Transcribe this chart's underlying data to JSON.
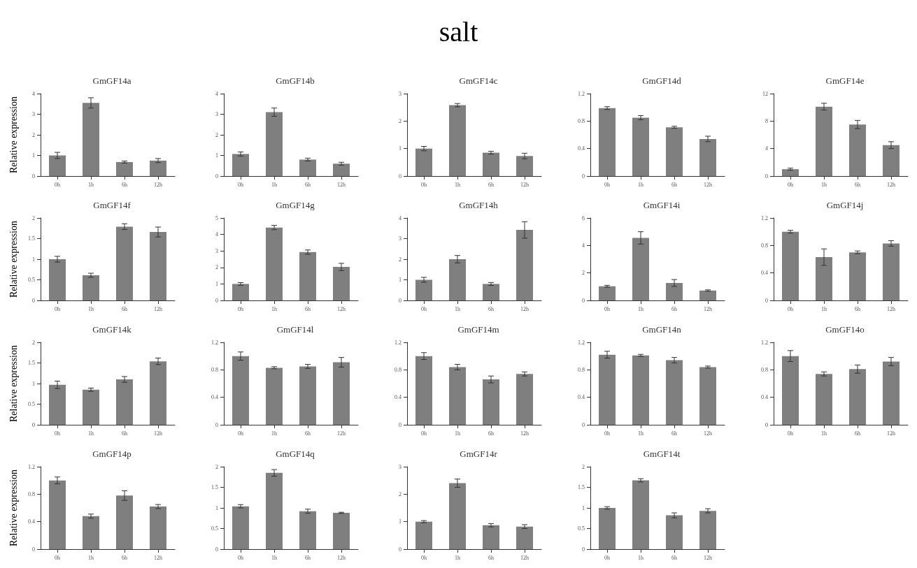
{
  "chart_data": [
    {
      "type": "other",
      "title": "salt"
    },
    {
      "type": "bar",
      "title": "GmGF14a",
      "ylabel": "Relative expression",
      "categories": [
        "0h",
        "1h",
        "6h",
        "12h"
      ],
      "values": [
        1.0,
        3.55,
        0.68,
        0.75
      ],
      "errors": [
        0.15,
        0.25,
        0.05,
        0.1
      ],
      "color": "#7f7f7f",
      "ylim": [
        0,
        4
      ],
      "yticks": [
        0,
        1,
        2,
        3,
        4
      ],
      "grid": false
    },
    {
      "type": "bar",
      "title": "GmGF14b",
      "categories": [
        "0h",
        "1h",
        "6h",
        "12h"
      ],
      "values": [
        1.07,
        3.1,
        0.8,
        0.6
      ],
      "errors": [
        0.1,
        0.2,
        0.07,
        0.07
      ],
      "color": "#7f7f7f",
      "ylim": [
        0,
        4
      ],
      "yticks": [
        0,
        1,
        2,
        3,
        4
      ],
      "grid": false
    },
    {
      "type": "bar",
      "title": "GmGF14c",
      "categories": [
        "0h",
        "1h",
        "6h",
        "12h"
      ],
      "values": [
        1.0,
        2.58,
        0.85,
        0.73
      ],
      "errors": [
        0.08,
        0.06,
        0.05,
        0.1
      ],
      "color": "#7f7f7f",
      "ylim": [
        0,
        3
      ],
      "yticks": [
        0,
        1,
        2,
        3
      ],
      "grid": false
    },
    {
      "type": "bar",
      "title": "GmGF14d",
      "categories": [
        "0h",
        "1h",
        "6h",
        "12h"
      ],
      "values": [
        0.99,
        0.85,
        0.71,
        0.54
      ],
      "errors": [
        0.02,
        0.03,
        0.015,
        0.04
      ],
      "color": "#7f7f7f",
      "ylim": [
        0,
        1.2
      ],
      "yticks": [
        0,
        0.4,
        0.8,
        1.2
      ],
      "grid": false
    },
    {
      "type": "bar",
      "title": "GmGF14e",
      "categories": [
        "0h",
        "1h",
        "6h",
        "12h"
      ],
      "values": [
        1.0,
        10.1,
        7.5,
        4.5
      ],
      "errors": [
        0.15,
        0.5,
        0.6,
        0.5
      ],
      "color": "#7f7f7f",
      "ylim": [
        0,
        12
      ],
      "yticks": [
        0,
        4,
        8,
        12
      ],
      "grid": false
    },
    {
      "type": "bar",
      "title": "GmGF14f",
      "ylabel": "Relative expression",
      "categories": [
        "0h",
        "1h",
        "6h",
        "12h"
      ],
      "values": [
        1.0,
        0.61,
        1.79,
        1.66
      ],
      "errors": [
        0.07,
        0.05,
        0.07,
        0.12
      ],
      "color": "#7f7f7f",
      "ylim": [
        0,
        2
      ],
      "yticks": [
        0,
        0.5,
        1,
        1.5,
        2
      ],
      "grid": false
    },
    {
      "type": "bar",
      "title": "GmGF14g",
      "categories": [
        "0h",
        "1h",
        "6h",
        "12h"
      ],
      "values": [
        1.0,
        4.42,
        2.93,
        2.03
      ],
      "errors": [
        0.08,
        0.13,
        0.13,
        0.22
      ],
      "color": "#7f7f7f",
      "ylim": [
        0,
        5
      ],
      "yticks": [
        0,
        1,
        2,
        3,
        4,
        5
      ],
      "grid": false
    },
    {
      "type": "bar",
      "title": "GmGF14h",
      "categories": [
        "0h",
        "1h",
        "6h",
        "12h"
      ],
      "values": [
        1.0,
        2.0,
        0.8,
        3.42
      ],
      "errors": [
        0.12,
        0.18,
        0.07,
        0.4
      ],
      "color": "#7f7f7f",
      "ylim": [
        0,
        4
      ],
      "yticks": [
        0,
        1,
        2,
        3,
        4
      ],
      "grid": false
    },
    {
      "type": "bar",
      "title": "GmGF14i",
      "categories": [
        "0h",
        "1h",
        "6h",
        "12h"
      ],
      "values": [
        1.03,
        4.55,
        1.27,
        0.72
      ],
      "errors": [
        0.07,
        0.45,
        0.25,
        0.05
      ],
      "color": "#7f7f7f",
      "ylim": [
        0,
        6
      ],
      "yticks": [
        0,
        2,
        4,
        6
      ],
      "grid": false
    },
    {
      "type": "bar",
      "title": "GmGF14j",
      "categories": [
        "0h",
        "1h",
        "6h",
        "12h"
      ],
      "values": [
        1.0,
        0.63,
        0.7,
        0.83
      ],
      "errors": [
        0.02,
        0.12,
        0.02,
        0.04
      ],
      "color": "#7f7f7f",
      "ylim": [
        0,
        1.2
      ],
      "yticks": [
        0,
        0.4,
        0.8,
        1.2
      ],
      "grid": false
    },
    {
      "type": "bar",
      "title": "GmGF14k",
      "ylabel": "Relative expression",
      "categories": [
        "0h",
        "1h",
        "6h",
        "12h"
      ],
      "values": [
        0.97,
        0.85,
        1.1,
        1.54
      ],
      "errors": [
        0.09,
        0.04,
        0.07,
        0.08
      ],
      "color": "#7f7f7f",
      "ylim": [
        0,
        2
      ],
      "yticks": [
        0,
        0.5,
        1,
        1.5,
        2
      ],
      "grid": false
    },
    {
      "type": "bar",
      "title": "GmGF14l",
      "categories": [
        "0h",
        "1h",
        "6h",
        "12h"
      ],
      "values": [
        1.0,
        0.83,
        0.85,
        0.91
      ],
      "errors": [
        0.06,
        0.015,
        0.03,
        0.07
      ],
      "color": "#7f7f7f",
      "ylim": [
        0,
        1.2
      ],
      "yticks": [
        0,
        0.4,
        0.8,
        1.2
      ],
      "grid": false
    },
    {
      "type": "bar",
      "title": "GmGF14m",
      "categories": [
        "0h",
        "1h",
        "6h",
        "12h"
      ],
      "values": [
        1.0,
        0.84,
        0.66,
        0.74
      ],
      "errors": [
        0.05,
        0.04,
        0.05,
        0.03
      ],
      "color": "#7f7f7f",
      "ylim": [
        0,
        1.2
      ],
      "yticks": [
        0,
        0.4,
        0.8,
        1.2
      ],
      "grid": false
    },
    {
      "type": "bar",
      "title": "GmGF14n",
      "categories": [
        "0h",
        "1h",
        "6h",
        "12h"
      ],
      "values": [
        1.02,
        1.01,
        0.94,
        0.84
      ],
      "errors": [
        0.05,
        0.015,
        0.04,
        0.015
      ],
      "color": "#7f7f7f",
      "ylim": [
        0,
        1.2
      ],
      "yticks": [
        0,
        0.4,
        0.8,
        1.2
      ],
      "grid": false
    },
    {
      "type": "bar",
      "title": "GmGF14o",
      "categories": [
        "0h",
        "1h",
        "6h",
        "12h"
      ],
      "values": [
        1.0,
        0.74,
        0.81,
        0.92
      ],
      "errors": [
        0.08,
        0.03,
        0.06,
        0.06
      ],
      "color": "#7f7f7f",
      "ylim": [
        0,
        1.2
      ],
      "yticks": [
        0,
        0.4,
        0.8,
        1.2
      ],
      "grid": false
    },
    {
      "type": "bar",
      "title": "GmGF14p",
      "ylabel": "Relative expression",
      "categories": [
        "0h",
        "1h",
        "6h",
        "12h"
      ],
      "values": [
        1.0,
        0.48,
        0.78,
        0.62
      ],
      "errors": [
        0.05,
        0.03,
        0.07,
        0.03
      ],
      "color": "#7f7f7f",
      "ylim": [
        0,
        1.2
      ],
      "yticks": [
        0,
        0.4,
        0.8,
        1.2
      ],
      "grid": false
    },
    {
      "type": "bar",
      "title": "GmGF14q",
      "categories": [
        "0h",
        "1h",
        "6h",
        "12h"
      ],
      "values": [
        1.04,
        1.85,
        0.92,
        0.88
      ],
      "errors": [
        0.04,
        0.08,
        0.05,
        0.015
      ],
      "color": "#7f7f7f",
      "ylim": [
        0,
        2
      ],
      "yticks": [
        0,
        0.5,
        1,
        1.5,
        2
      ],
      "grid": false
    },
    {
      "type": "bar",
      "title": "GmGF14r",
      "categories": [
        "0h",
        "1h",
        "6h",
        "12h"
      ],
      "values": [
        1.0,
        2.4,
        0.87,
        0.82
      ],
      "errors": [
        0.04,
        0.15,
        0.06,
        0.07
      ],
      "color": "#7f7f7f",
      "ylim": [
        0,
        3
      ],
      "yticks": [
        0,
        1,
        2,
        3
      ],
      "grid": false
    },
    {
      "type": "bar",
      "title": "GmGF14t",
      "categories": [
        "0h",
        "1h",
        "6h",
        "12h"
      ],
      "values": [
        1.0,
        1.67,
        0.82,
        0.93
      ],
      "errors": [
        0.03,
        0.04,
        0.06,
        0.05
      ],
      "color": "#7f7f7f",
      "ylim": [
        0,
        2
      ],
      "yticks": [
        0,
        0.5,
        1,
        1.5,
        2
      ],
      "grid": false
    }
  ]
}
